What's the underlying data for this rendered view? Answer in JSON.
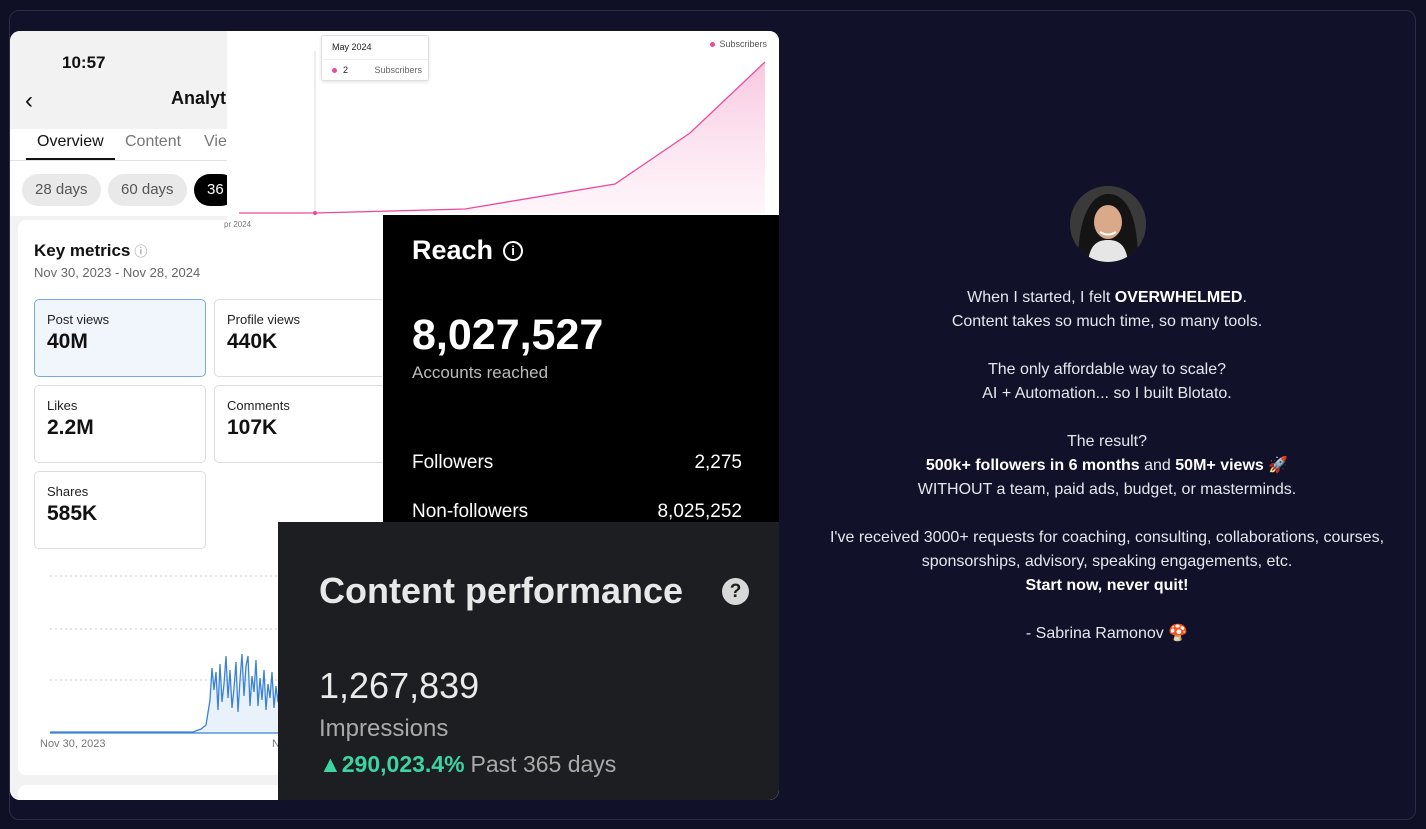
{
  "phone": {
    "time": "10:57",
    "back_glyph": "‹",
    "title": "Analyti",
    "tabs": [
      "Overview",
      "Content",
      "Vie"
    ],
    "ranges": [
      "28 days",
      "60 days",
      "36"
    ],
    "key_metrics": {
      "title": "Key metrics",
      "info_glyph": "ⓘ",
      "date_range": "Nov 30, 2023 - Nov 28, 2024",
      "items": [
        {
          "label": "Post views",
          "value": "40M"
        },
        {
          "label": "Profile views",
          "value": "440K"
        },
        {
          "label": "Likes",
          "value": "2.2M"
        },
        {
          "label": "Comments",
          "value": "107K"
        },
        {
          "label": "Shares",
          "value": "585K"
        }
      ]
    },
    "chart_start": "Nov 30, 2023",
    "chart_end_partial": "N"
  },
  "subscribers_chart": {
    "legend": "Subscribers",
    "tooltip_month": "May 2024",
    "tooltip_value": "2",
    "tooltip_series": "Subscribers",
    "x_label_partial": "pr 2024",
    "color": "#e94a9a"
  },
  "reach": {
    "title": "Reach",
    "info_glyph": "i",
    "total": "8,027,527",
    "total_label": "Accounts reached",
    "rows": [
      {
        "label": "Followers",
        "value": "2,275"
      },
      {
        "label": "Non-followers",
        "value": "8,025,252"
      }
    ]
  },
  "content_performance": {
    "title": "Content performance",
    "help_glyph": "?",
    "impressions": "1,267,839",
    "impressions_label": "Impressions",
    "growth_arrow": "▲",
    "growth": "290,023.4%",
    "period": "Past 365 days",
    "growth_color": "#3dd4a0"
  },
  "testimonial": {
    "line1_pre": "When I started, I felt ",
    "line1_bold": "OVERWHELMED",
    "line1_post": ".",
    "line2": "Content takes so much time, so many tools.",
    "line3": "The only affordable way to scale?",
    "line4": "AI + Automation... so I built Blotato.",
    "line5": "The result?",
    "line6_bold1": "500k+ followers in 6 months",
    "line6_mid": " and ",
    "line6_bold2": "50M+ views",
    "line6_emoji": " 🚀",
    "line7": "WITHOUT a team, paid ads, budget, or masterminds.",
    "line8": "I've received 3000+ requests for coaching, consulting, collaborations, courses,",
    "line9": "sponsorships, advisory, speaking engagements, etc.",
    "line10_bold": "Start now, never quit!",
    "signature": "- Sabrina Ramonov 🍄"
  }
}
